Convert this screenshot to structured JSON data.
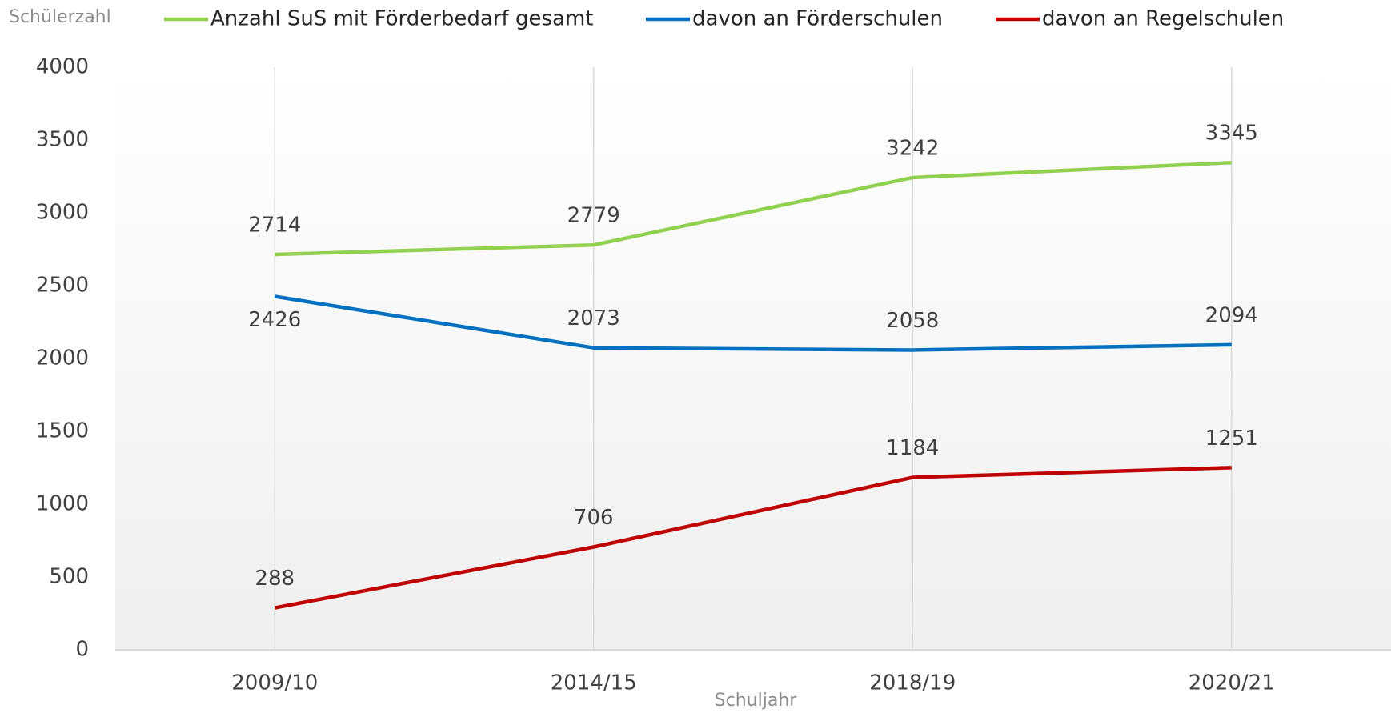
{
  "chart_data": {
    "type": "line",
    "y_label": "Schülerzahl",
    "x_label": "Schuljahr",
    "categories": [
      "2009/10",
      "2014/15",
      "2018/19",
      "2020/21"
    ],
    "series": [
      {
        "name": "Anzahl SuS mit Förderbedarf gesamt",
        "color": "#92d050",
        "values": [
          2714,
          2779,
          3242,
          3345
        ]
      },
      {
        "name": "davon an Förderschulen",
        "color": "#0070c0",
        "values": [
          2426,
          2073,
          2058,
          2094
        ]
      },
      {
        "name": "davon an Regelschulen",
        "color": "#c00000",
        "values": [
          288,
          706,
          1184,
          1251
        ]
      }
    ],
    "ylim": [
      0,
      4000
    ],
    "yticks": [
      0,
      500,
      1000,
      1500,
      2000,
      2500,
      3000,
      3500,
      4000
    ],
    "grid": "x",
    "legend": "top"
  }
}
